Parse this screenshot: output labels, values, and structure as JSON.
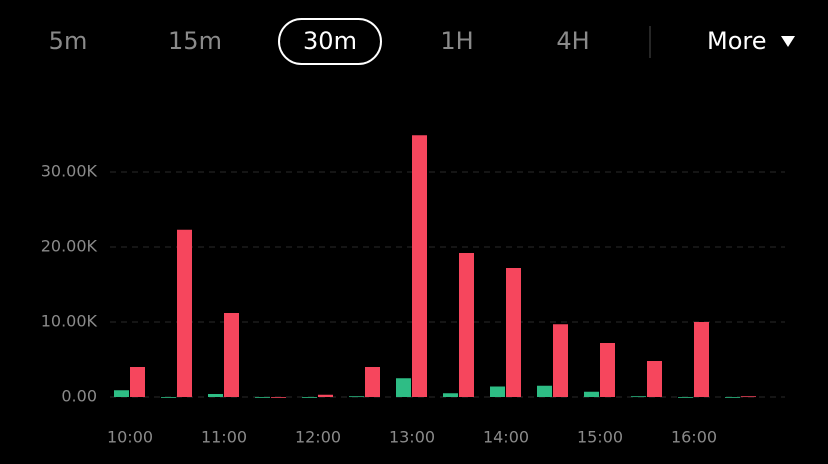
{
  "tabs": [
    "5m",
    "15m",
    "30m",
    "1H",
    "4H"
  ],
  "selected_tab": 2,
  "more": "More",
  "chart_data": {
    "type": "bar",
    "categories": [
      "10:00",
      null,
      "11:00",
      null,
      "12:00",
      null,
      "13:00",
      null,
      "14:00",
      null,
      "15:00",
      null,
      "16:00",
      null
    ],
    "series": [
      {
        "color": "#2ebd85",
        "values": [
          900,
          0,
          400,
          0,
          0,
          100,
          2500,
          500,
          1400,
          1500,
          700,
          100,
          0,
          0
        ]
      },
      {
        "color": "#f6465d",
        "values": [
          4000,
          22300,
          11200,
          0,
          300,
          4000,
          34900,
          19200,
          17200,
          9700,
          7200,
          4800,
          10000,
          100
        ]
      }
    ],
    "ylim": [
      0,
      36000
    ],
    "yticks": [
      {
        "value": 0,
        "label": "0.00"
      },
      {
        "value": 10000,
        "label": "10.00K"
      },
      {
        "value": 20000,
        "label": "20.00K"
      },
      {
        "value": 30000,
        "label": "30.00K"
      }
    ],
    "grid": true
  }
}
